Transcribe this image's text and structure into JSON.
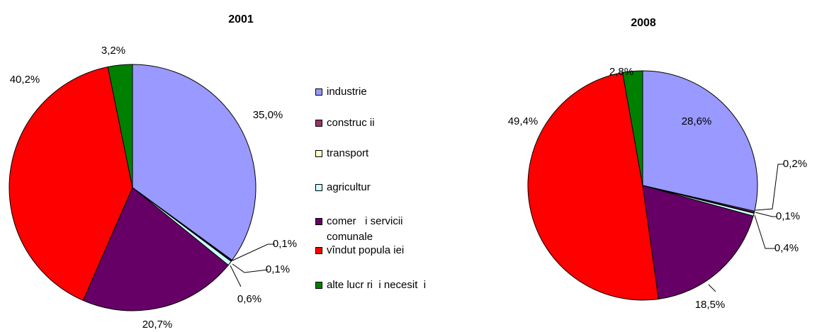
{
  "chart_data": [
    {
      "type": "pie",
      "title": "2001",
      "categories": [
        "industrie",
        "construc ii",
        "transport",
        "agricultur",
        "comer   i servicii comunale",
        "vîndut popula iei",
        "alte lucr ri  i necesit  i"
      ],
      "values": [
        35.0,
        0.1,
        0.1,
        0.6,
        20.7,
        40.2,
        3.2
      ],
      "value_labels": [
        "35,0%",
        "0,1%",
        "0,1%",
        "0,6%",
        "20,7%",
        "40,2%",
        "3,2%"
      ],
      "colors": [
        "#9999ff",
        "#993366",
        "#ffffcc",
        "#ccffff",
        "#660066",
        "#ff0000",
        "#008000"
      ]
    },
    {
      "type": "pie",
      "title": "2008",
      "categories": [
        "industrie",
        "construc ii",
        "transport",
        "agricultur",
        "comer   i servicii comunale",
        "vîndut popula iei",
        "alte lucr ri  i necesit  i"
      ],
      "values": [
        28.6,
        0.2,
        0.1,
        0.4,
        18.5,
        49.4,
        2.8
      ],
      "value_labels": [
        "28,6%",
        "0,2%",
        "0,1%",
        "0,4%",
        "18,5%",
        "49,4%",
        "2,8%"
      ],
      "colors": [
        "#9999ff",
        "#993366",
        "#ffffcc",
        "#ccffff",
        "#660066",
        "#ff0000",
        "#008000"
      ]
    }
  ]
}
